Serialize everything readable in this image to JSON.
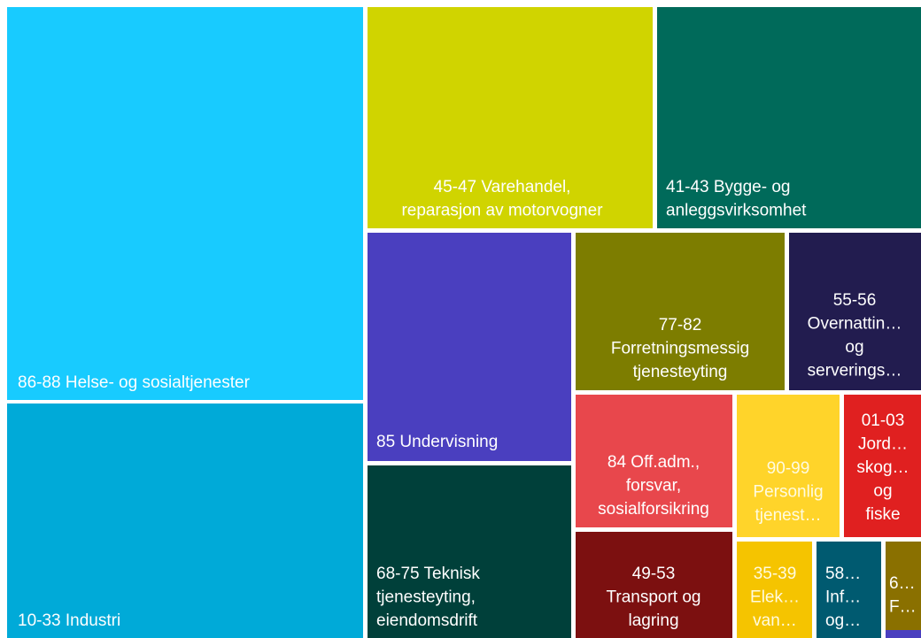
{
  "nodes": [
    {
      "lines": [
        "86-88 Helse- og sosialtjenester"
      ]
    },
    {
      "lines": [
        "10-33 Industri"
      ]
    },
    {
      "lines": [
        "45-47 Varehandel,",
        "reparasjon av motorvogner"
      ]
    },
    {
      "lines": [
        "41-43 Bygge- og",
        "anleggsvirksomhet"
      ]
    },
    {
      "lines": [
        "85 Undervisning"
      ]
    },
    {
      "lines": [
        "68-75 Teknisk",
        "tjenesteyting,",
        "eiendomsdrift"
      ]
    },
    {
      "lines": [
        "77-82",
        "Forretningsmessig",
        "tjenesteyting"
      ]
    },
    {
      "lines": [
        "55-56",
        "Overnattin…",
        "og",
        "serverings…"
      ]
    },
    {
      "lines": [
        "84 Off.adm.,",
        "forsvar,",
        "sosialforsikring"
      ]
    },
    {
      "lines": [
        "90-99",
        "Personlig",
        "tjenest…"
      ]
    },
    {
      "lines": [
        "01-03",
        "Jord…",
        "skog…",
        "og",
        "fiske"
      ]
    },
    {
      "lines": [
        "49-53",
        "Transport og",
        "lagring"
      ]
    },
    {
      "lines": [
        "35-39",
        "Elek…",
        "van…"
      ]
    },
    {
      "lines": [
        "58…",
        "Inf…",
        "og…"
      ]
    },
    {
      "lines": [
        "6…",
        "F…"
      ]
    }
  ]
}
